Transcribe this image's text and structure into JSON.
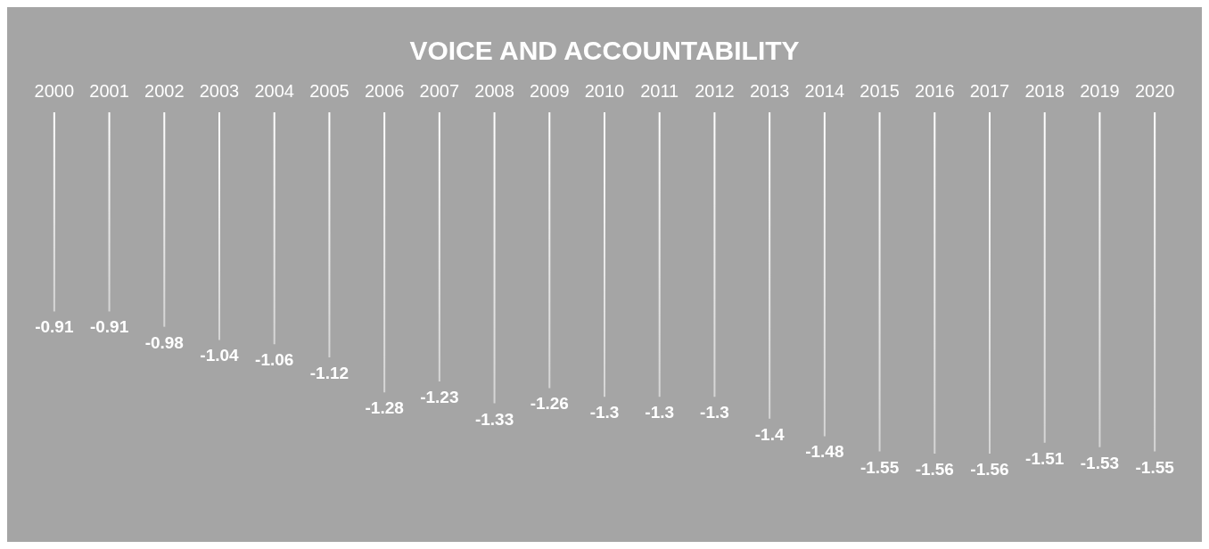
{
  "chart_data": {
    "type": "bar",
    "title": "VOICE AND ACCOUNTABILITY",
    "categories": [
      "2000",
      "2001",
      "2002",
      "2003",
      "2004",
      "2005",
      "2006",
      "2007",
      "2008",
      "2009",
      "2010",
      "2011",
      "2012",
      "2013",
      "2014",
      "2015",
      "2016",
      "2017",
      "2018",
      "2019",
      "2020"
    ],
    "values": [
      -0.91,
      -0.91,
      -0.98,
      -1.04,
      -1.06,
      -1.12,
      -1.28,
      -1.23,
      -1.33,
      -1.26,
      -1.3,
      -1.3,
      -1.3,
      -1.4,
      -1.48,
      -1.55,
      -1.56,
      -1.56,
      -1.51,
      -1.53,
      -1.55
    ],
    "color": "#ffffff",
    "data_labels": true,
    "grid": false
  }
}
